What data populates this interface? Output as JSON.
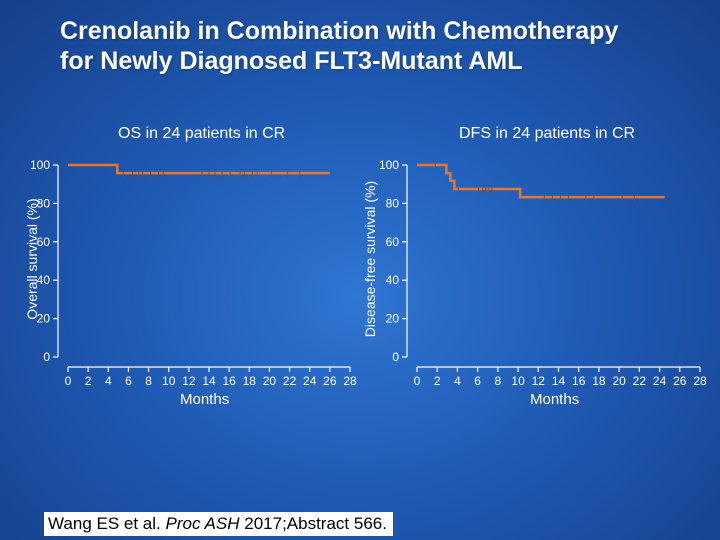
{
  "slide": {
    "title_line1": "Crenolanib in Combination with Chemotherapy",
    "title_line2": "for Newly Diagnosed FLT3-Mutant AML",
    "citation": {
      "authors": "Wang ES et al.",
      "journal": "Proc ASH",
      "details": "2017;Abstract 566."
    }
  },
  "colors": {
    "curve": "#e8762d",
    "axis": "#ffffff",
    "background": "#1f5bb5"
  },
  "chart_data": [
    {
      "type": "line",
      "subtype": "kaplan-meier",
      "title": "OS in 24 patients in CR",
      "xlabel": "Months",
      "ylabel": "Overall survival (%)",
      "xlim": [
        0,
        28
      ],
      "ylim": [
        0,
        100
      ],
      "xticks": [
        0,
        2,
        4,
        6,
        8,
        10,
        12,
        14,
        16,
        18,
        20,
        22,
        24,
        26,
        28
      ],
      "yticks": [
        0,
        20,
        40,
        60,
        80,
        100
      ],
      "steps": [
        {
          "x": 0,
          "y": 100
        },
        {
          "x": 4.9,
          "y": 95.8
        },
        {
          "x": 26,
          "y": 95.8
        }
      ],
      "censored_x": [
        5.5,
        6.4,
        7.0,
        7.4,
        8.2,
        9.0,
        9.5,
        13.3,
        14.0,
        14.6,
        15.3,
        16.1,
        17.1,
        17.5,
        18.3,
        18.8,
        20.2,
        21.8,
        23.0
      ]
    },
    {
      "type": "line",
      "subtype": "kaplan-meier",
      "title": "DFS in 24 patients in CR",
      "xlabel": "Months",
      "ylabel": "Disease-free survival (%)",
      "xlim": [
        0,
        28
      ],
      "ylim": [
        0,
        100
      ],
      "xticks": [
        0,
        2,
        4,
        6,
        8,
        10,
        12,
        14,
        16,
        18,
        20,
        22,
        24,
        26,
        28
      ],
      "yticks": [
        0,
        20,
        40,
        60,
        80,
        100
      ],
      "steps": [
        {
          "x": 0,
          "y": 100
        },
        {
          "x": 2.9,
          "y": 95.8
        },
        {
          "x": 3.3,
          "y": 91.7
        },
        {
          "x": 3.7,
          "y": 87.5
        },
        {
          "x": 10.2,
          "y": 83.3
        },
        {
          "x": 24.5,
          "y": 83.3
        }
      ],
      "censored_x": [
        1.8,
        4.1,
        6.1,
        6.5,
        6.8,
        7.1,
        7.4,
        12.6,
        13.4,
        14.2,
        15.0,
        16.7,
        17.5,
        20.3,
        21.5
      ]
    }
  ]
}
